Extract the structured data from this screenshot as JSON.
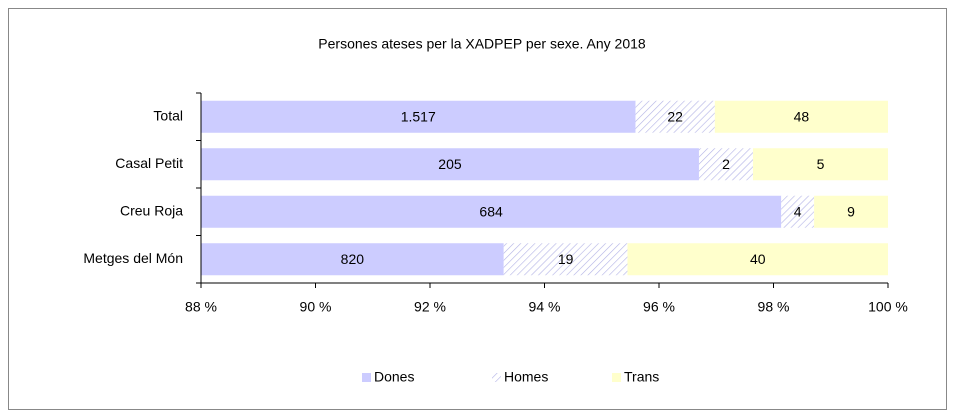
{
  "chart_data": {
    "type": "bar",
    "orientation": "horizontal",
    "stacking": "percent",
    "title": "Persones ateses per la XADPEP per sexe. Any 2018",
    "categories": [
      "Total",
      "Casal Petit",
      "Creu Roja",
      "Metges del Món"
    ],
    "series": [
      {
        "name": "Dones",
        "color": "#ccccff",
        "fill": "solid",
        "values": [
          1517,
          205,
          684,
          820
        ],
        "value_labels": [
          "1.517",
          "205",
          "684",
          "820"
        ]
      },
      {
        "name": "Homes",
        "color": "#b3b3e6",
        "fill": "hatch",
        "values": [
          22,
          2,
          4,
          19
        ]
      },
      {
        "name": "Trans",
        "color": "#ffffcc",
        "fill": "solid",
        "values": [
          48,
          5,
          9,
          40
        ]
      }
    ],
    "xlim": [
      88,
      100
    ],
    "xticks": [
      {
        "value": 88,
        "label": "88 %"
      },
      {
        "value": 90,
        "label": "90 %"
      },
      {
        "value": 92,
        "label": "92 %"
      },
      {
        "value": 94,
        "label": "94 %"
      },
      {
        "value": 96,
        "label": "96 %"
      },
      {
        "value": 98,
        "label": "98 %"
      },
      {
        "value": 100,
        "label": "100 %"
      }
    ],
    "legend": "bottom"
  }
}
